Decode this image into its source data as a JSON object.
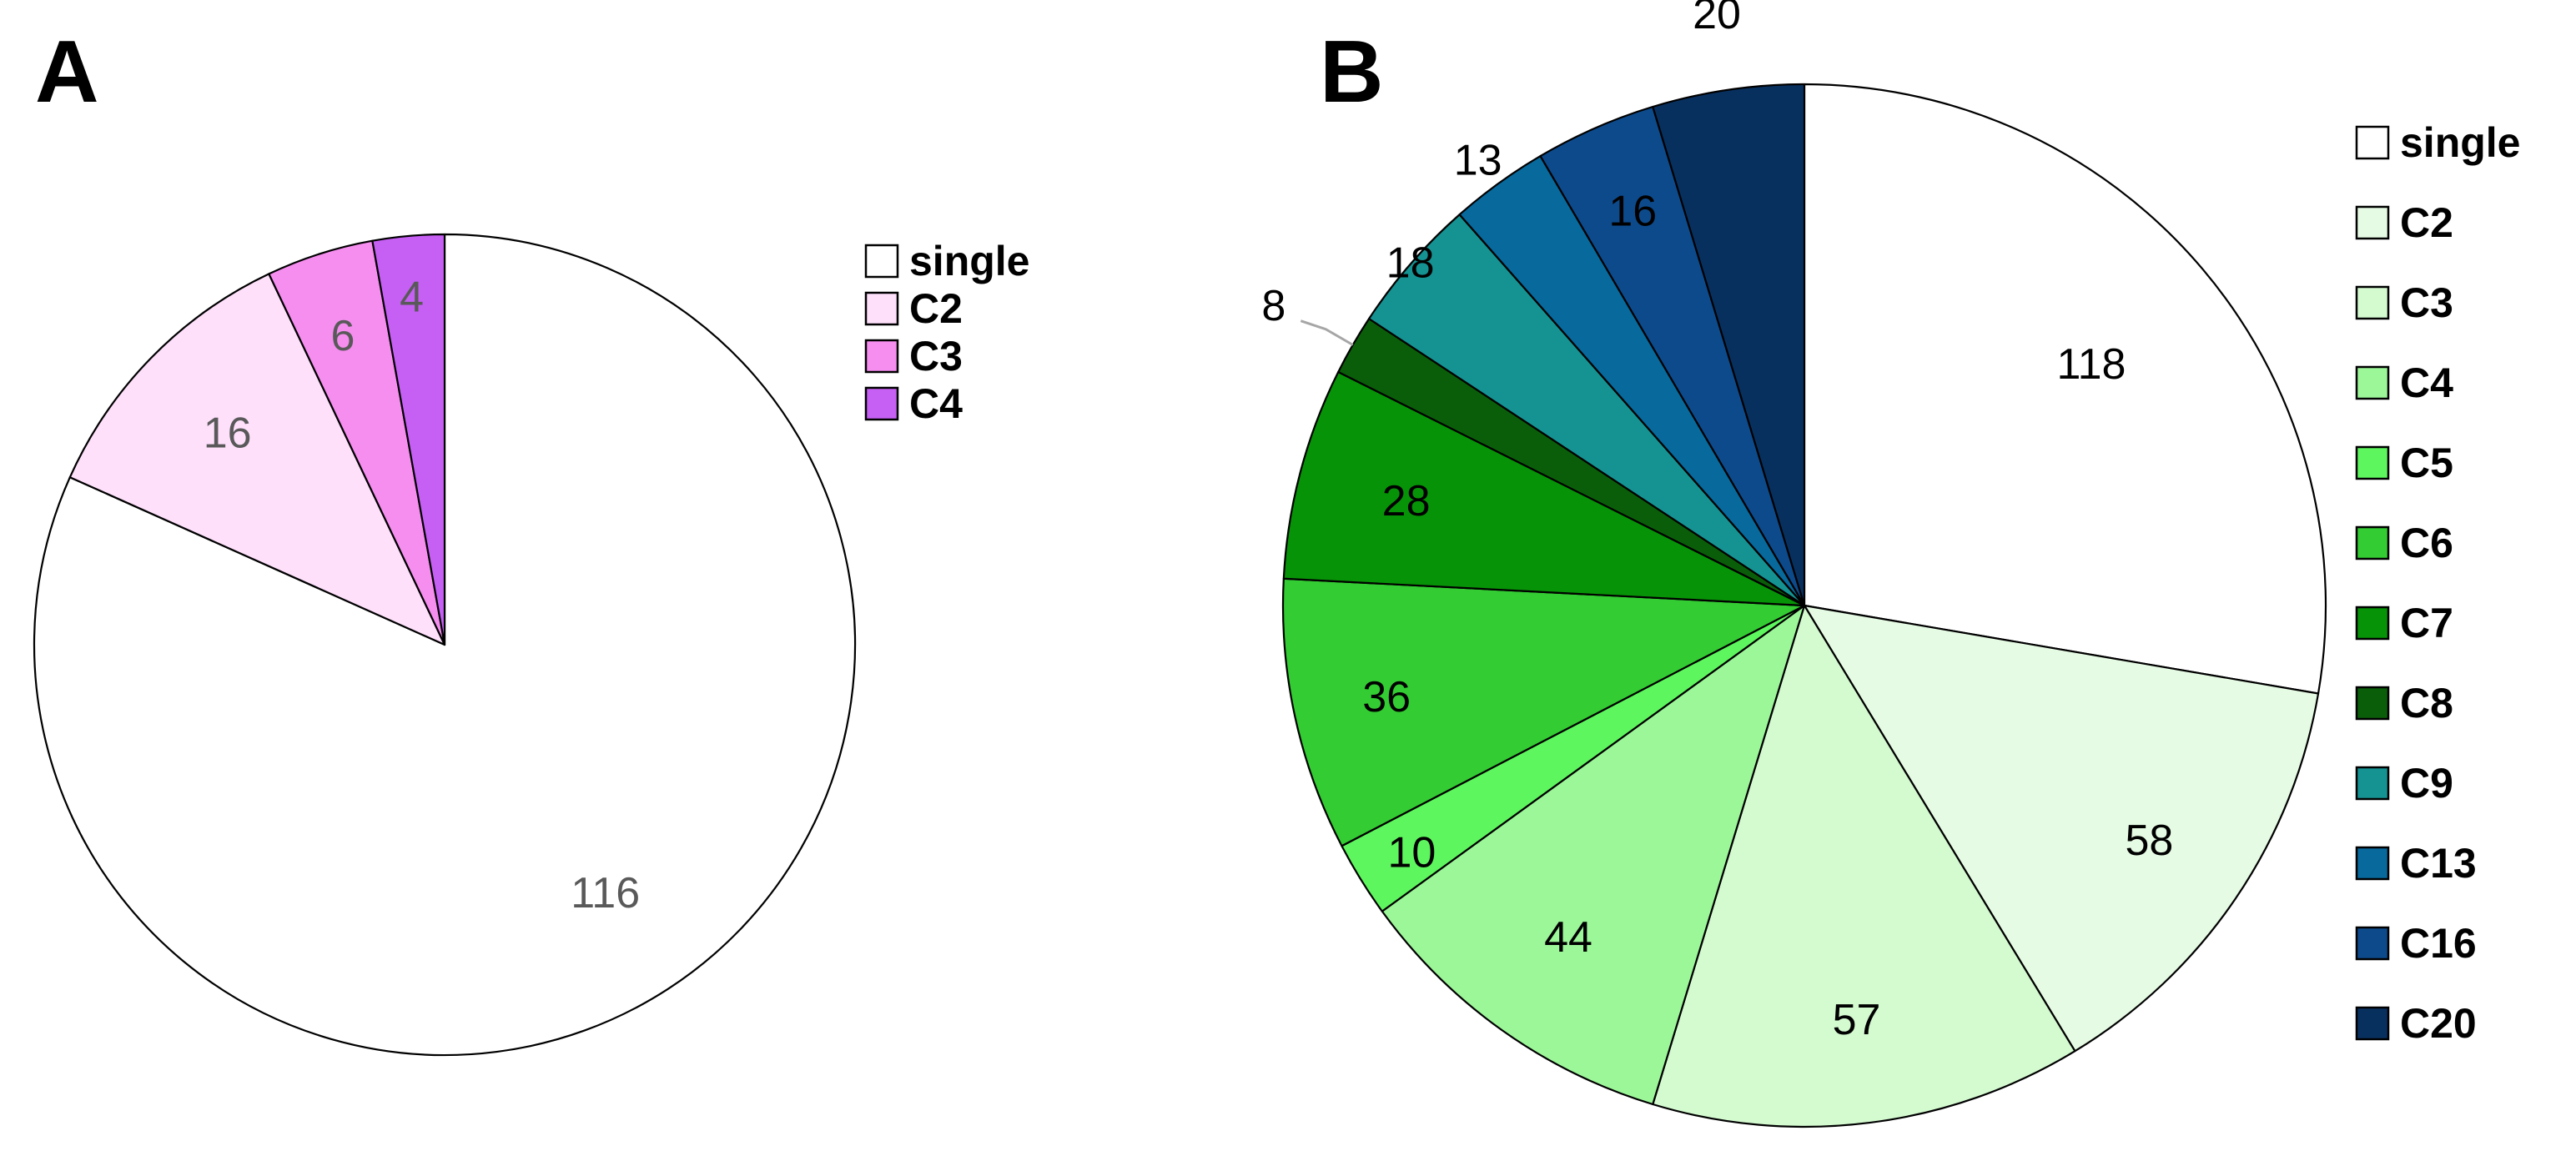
{
  "chart_data": [
    {
      "type": "pie",
      "panel_label": "A",
      "categories": [
        "single",
        "C2",
        "C3",
        "C4"
      ],
      "values": [
        116,
        16,
        6,
        4
      ],
      "colors": [
        "#ffffff",
        "#fee0fb",
        "#f68ef0",
        "#c660f4"
      ],
      "label_color": "#595959",
      "start_angle_deg": 0,
      "direction": "clockwise",
      "legend_position": "right",
      "title": "",
      "xlabel": "",
      "ylabel": ""
    },
    {
      "type": "pie",
      "panel_label": "B",
      "categories": [
        "single",
        "C2",
        "C3",
        "C4",
        "C5",
        "C6",
        "C7",
        "C8",
        "C9",
        "C13",
        "C16",
        "C20"
      ],
      "values": [
        118,
        58,
        57,
        44,
        10,
        36,
        28,
        8,
        18,
        13,
        16,
        20
      ],
      "colors": [
        "#ffffff",
        "#e6fbe4",
        "#d4fad0",
        "#9cf799",
        "#5ef65e",
        "#33cc33",
        "#079307",
        "#0a5e0a",
        "#159393",
        "#07699c",
        "#0d4a8c",
        "#08305f"
      ],
      "label_color": "#000000",
      "start_angle_deg": 0,
      "direction": "clockwise",
      "legend_position": "right",
      "title": "",
      "xlabel": "",
      "ylabel": ""
    }
  ]
}
